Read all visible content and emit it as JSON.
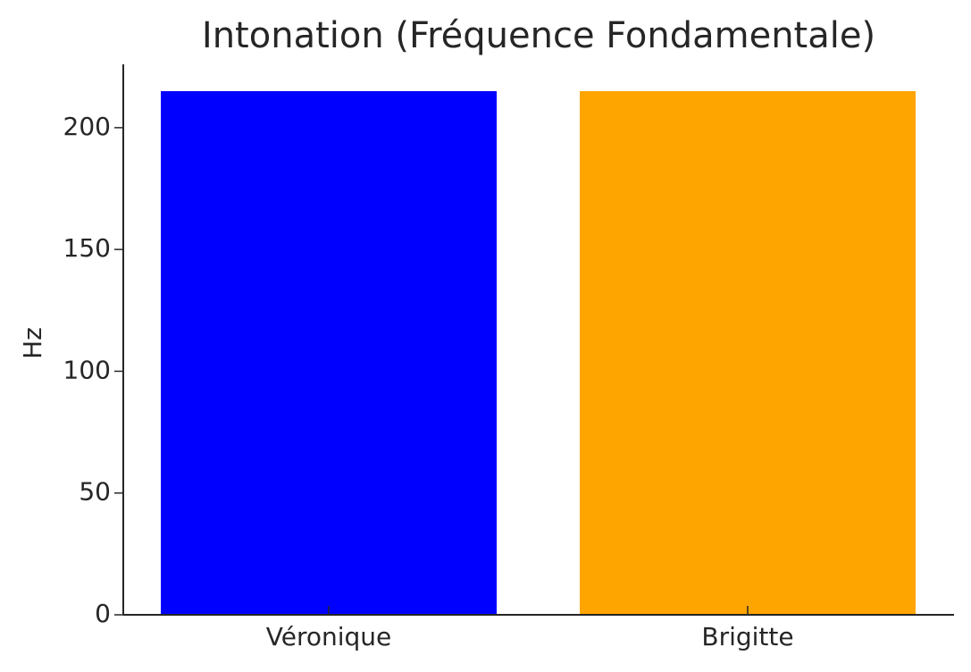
{
  "chart_data": {
    "type": "bar",
    "title": "Intonation (Fréquence Fondamentale)",
    "ylabel": "Hz",
    "categories": [
      "Véronique",
      "Brigitte"
    ],
    "values": [
      215,
      215
    ],
    "colors": [
      "#0000ff",
      "#ffa500"
    ],
    "ylim": [
      0,
      226
    ],
    "yticks": [
      0,
      50,
      100,
      150,
      200
    ]
  }
}
